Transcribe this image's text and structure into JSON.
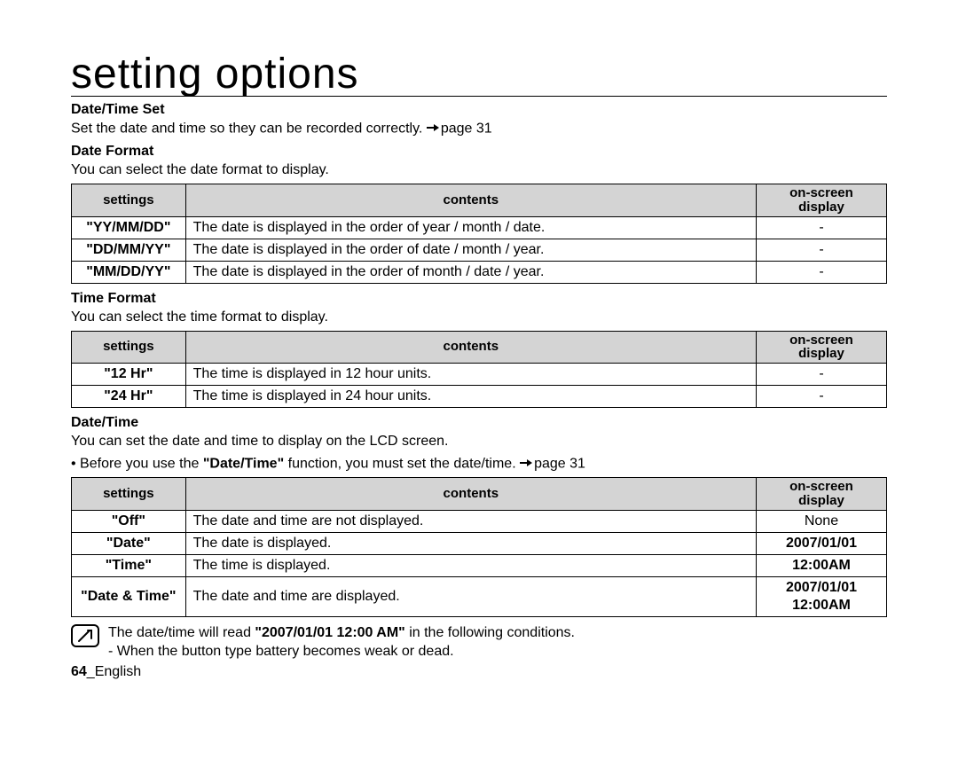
{
  "page_title": "setting options",
  "sections": {
    "datetime_set": {
      "heading": "Date/Time Set",
      "body": "Set the date and time so they can be recorded correctly.",
      "page_ref": "page 31"
    },
    "date_format": {
      "heading": "Date Format",
      "body": "You can select the date format to display.",
      "table": {
        "headers": {
          "settings": "settings",
          "contents": "contents",
          "display": "on-screen\ndisplay"
        },
        "rows": [
          {
            "setting": "\"YY/MM/DD\"",
            "content": "The date is displayed in the order of  year / month / date.",
            "display": "-"
          },
          {
            "setting": "\"DD/MM/YY\"",
            "content": "The date is displayed in the order of  date / month / year.",
            "display": "-"
          },
          {
            "setting": "\"MM/DD/YY\"",
            "content": "The date is displayed in the order of month / date / year.",
            "display": "-"
          }
        ]
      }
    },
    "time_format": {
      "heading": "Time Format",
      "body": "You can select the time format to display.",
      "table": {
        "headers": {
          "settings": "settings",
          "contents": "contents",
          "display": "on-screen\ndisplay"
        },
        "rows": [
          {
            "setting": "\"12 Hr\"",
            "content": "The time is displayed in 12 hour units.",
            "display": "-"
          },
          {
            "setting": "\"24 Hr\"",
            "content": "The time is displayed in 24 hour units.",
            "display": "-"
          }
        ]
      }
    },
    "date_time": {
      "heading": "Date/Time",
      "body1": "You can set the date and time to display on the LCD screen.",
      "bullet_pre": "• Before you use the ",
      "bullet_bold": "\"Date/Time\"",
      "bullet_post": " function, you must set the date/time.",
      "page_ref": "page 31",
      "table": {
        "headers": {
          "settings": "settings",
          "contents": "contents",
          "display": "on-screen\ndisplay"
        },
        "rows": [
          {
            "setting": "\"Off\"",
            "content": "The date and time are not displayed.",
            "display": "None",
            "display_bold": false
          },
          {
            "setting": "\"Date\"",
            "content": "The date is displayed.",
            "display": "2007/01/01",
            "display_bold": true
          },
          {
            "setting": "\"Time\"",
            "content": "The time is displayed.",
            "display": "12:00AM",
            "display_bold": true
          },
          {
            "setting": "\"Date & Time\"",
            "content": "The date and time are displayed.",
            "display": "2007/01/01 12:00AM",
            "display_bold": true
          }
        ]
      }
    }
  },
  "note": {
    "line1_pre": "The date/time will read ",
    "line1_bold": "\"2007/01/01 12:00 AM\"",
    "line1_post": " in the following conditions.",
    "line2": "- When the button type battery becomes weak or dead."
  },
  "footer": {
    "page_num": "64",
    "sep": "_",
    "lang": "English"
  }
}
